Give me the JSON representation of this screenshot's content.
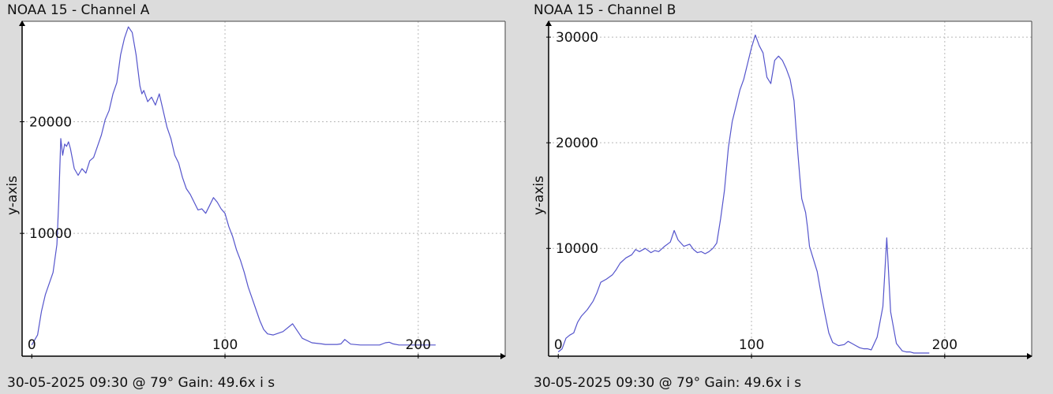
{
  "panels": [
    {
      "title": "NOAA 15 - Channel A",
      "footer": "30-05-2025 09:30 @ 79° Gain: 49.6",
      "x_axis_label": "x i s",
      "y_axis_label": "y-axis",
      "chart_data": {
        "type": "line",
        "title": "NOAA 15 - Channel A",
        "ylabel": "y-axis",
        "xlabel": "x i s",
        "xlim": [
          -5,
          245
        ],
        "ylim": [
          -1000,
          29000
        ],
        "x_ticks": [
          0,
          100,
          200
        ],
        "y_ticks": [
          10000,
          20000
        ],
        "grid": true,
        "line_color": "#5555cc",
        "series": [
          {
            "x": [
              0,
              3,
              5,
              7,
              9,
              11,
              13,
              14,
              15,
              16,
              17,
              18,
              19,
              20,
              22,
              24,
              26,
              28,
              30,
              32,
              34,
              36,
              38,
              40,
              42,
              44,
              46,
              48,
              50,
              52,
              54,
              56,
              57,
              58,
              60,
              62,
              64,
              66,
              68,
              70,
              72,
              74,
              76,
              78,
              80,
              82,
              84,
              86,
              88,
              90,
              92,
              94,
              96,
              98,
              100,
              102,
              104,
              106,
              108,
              110,
              112,
              114,
              116,
              118,
              120,
              122,
              125,
              130,
              135,
              140,
              145,
              150,
              152,
              155,
              158,
              160,
              162,
              165,
              170,
              175,
              180,
              183,
              185,
              187,
              190,
              195,
              198,
              202,
              205,
              207,
              209
            ],
            "y": [
              0,
              900,
              3000,
              4500,
              5500,
              6500,
              9000,
              13000,
              18500,
              17000,
              18000,
              17800,
              18200,
              17600,
              15800,
              15200,
              15800,
              15400,
              16500,
              16800,
              17800,
              18800,
              20200,
              21000,
              22500,
              23500,
              26000,
              27500,
              28500,
              28000,
              26000,
              23200,
              22500,
              22800,
              21800,
              22200,
              21500,
              22500,
              21000,
              19500,
              18500,
              17000,
              16300,
              15000,
              14000,
              13500,
              12800,
              12100,
              12200,
              11800,
              12500,
              13200,
              12800,
              12200,
              11800,
              10600,
              9700,
              8500,
              7600,
              6500,
              5200,
              4200,
              3200,
              2200,
              1400,
              1000,
              900,
              1200,
              1900,
              600,
              200,
              100,
              50,
              50,
              50,
              100,
              500,
              80,
              0,
              0,
              0,
              200,
              250,
              100,
              0,
              0,
              0,
              0,
              0,
              0,
              0
            ]
          }
        ]
      }
    },
    {
      "title": "NOAA 15 - Channel B",
      "footer": "30-05-2025 09:30 @ 79° Gain: 49.6",
      "x_axis_label": "x i s",
      "y_axis_label": "y-axis",
      "chart_data": {
        "type": "line",
        "title": "NOAA 15 - Channel B",
        "ylabel": "y-axis",
        "xlabel": "x i s",
        "xlim": [
          -5,
          245
        ],
        "ylim": [
          -200,
          31500
        ],
        "x_ticks": [
          0,
          100,
          200
        ],
        "y_ticks": [
          10000,
          20000,
          30000
        ],
        "grid": true,
        "line_color": "#5555cc",
        "series": [
          {
            "x": [
              0,
              2,
              4,
              6,
              8,
              10,
              12,
              15,
              18,
              20,
              22,
              25,
              28,
              30,
              32,
              35,
              38,
              40,
              42,
              45,
              48,
              50,
              52,
              55,
              58,
              60,
              62,
              65,
              68,
              70,
              72,
              74,
              76,
              78,
              80,
              82,
              84,
              86,
              88,
              90,
              92,
              94,
              96,
              98,
              100,
              102,
              104,
              106,
              108,
              110,
              112,
              114,
              116,
              118,
              120,
              122,
              123,
              124,
              125,
              126,
              128,
              129,
              130,
              132,
              134,
              136,
              138,
              140,
              142,
              145,
              148,
              150,
              152,
              154,
              156,
              158,
              160,
              162,
              165,
              168,
              170,
              172,
              175,
              178,
              180,
              182,
              184,
              185,
              186,
              187,
              188,
              190,
              192
            ],
            "y": [
              200,
              500,
              1500,
              1800,
              2000,
              3000,
              3600,
              4200,
              5000,
              5800,
              6800,
              7100,
              7500,
              8000,
              8600,
              9100,
              9400,
              9900,
              9700,
              10000,
              9600,
              9800,
              9700,
              10200,
              10600,
              11700,
              10800,
              10200,
              10400,
              9900,
              9600,
              9700,
              9500,
              9700,
              10000,
              10500,
              12800,
              15500,
              19500,
              22000,
              23500,
              25000,
              26000,
              27500,
              29000,
              30200,
              29200,
              28500,
              26200,
              25600,
              27800,
              28200,
              27800,
              27000,
              26000,
              24000,
              21500,
              19000,
              16800,
              14700,
              13400,
              12000,
              10200,
              9000,
              7800,
              5700,
              3800,
              2000,
              1100,
              800,
              900,
              1200,
              1000,
              800,
              600,
              500,
              500,
              400,
              1600,
              4500,
              11000,
              4000,
              1000,
              300,
              200,
              200,
              100,
              100,
              100,
              100,
              100,
              100,
              100
            ]
          }
        ]
      }
    }
  ]
}
